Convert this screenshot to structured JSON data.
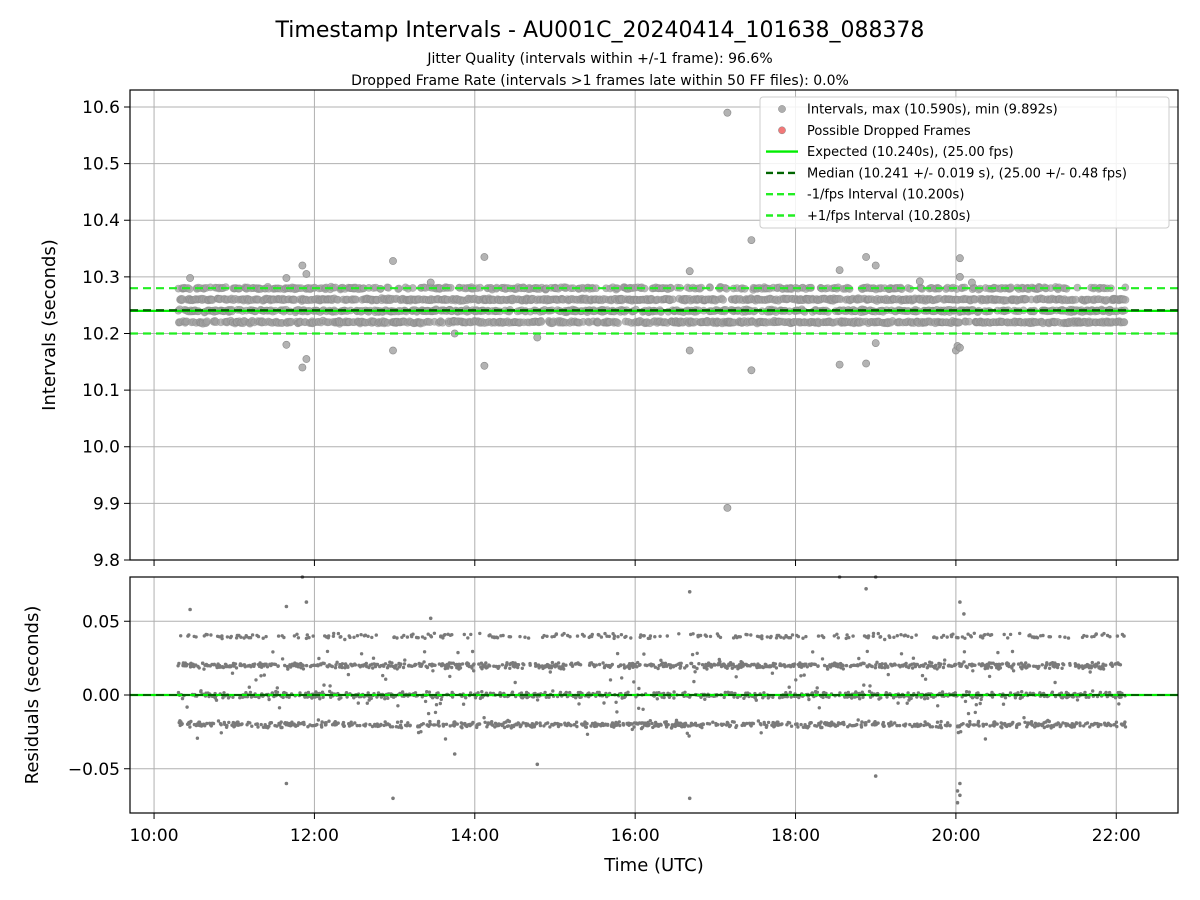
{
  "chart_data": [
    {
      "type": "scatter",
      "panel": "intervals",
      "title": "Timestamp Intervals - AU001C_20240414_101638_088378",
      "subtitle_1": "Jitter Quality (intervals within +/-1 frame): 96.6%",
      "subtitle_2": "Dropped Frame Rate (intervals >1 frames late within 50 FF files): 0.0%",
      "ylabel": "Intervals (seconds)",
      "xlim_hours": [
        9.7,
        22.77
      ],
      "ylim": [
        9.8,
        10.63
      ],
      "yticks": [
        9.8,
        9.9,
        10.0,
        10.1,
        10.2,
        10.3,
        10.4,
        10.5,
        10.6
      ],
      "ytick_labels": [
        "9.8",
        "9.9",
        "10.0",
        "10.1",
        "10.2",
        "10.3",
        "10.4",
        "10.5",
        "10.6"
      ],
      "grid": true,
      "legend_position": "top-right",
      "legend": [
        {
          "label": "Intervals, max (10.590s), min (9.892s)",
          "kind": "dot",
          "color": "#a0a0a0"
        },
        {
          "label": "Possible Dropped Frames",
          "kind": "dot",
          "color": "#f06060"
        },
        {
          "label": "Expected (10.240s), (25.00 fps)",
          "kind": "solid",
          "color": "#00ee00"
        },
        {
          "label": "Median (10.241 +/- 0.019 s), (25.00 +/- 0.48 fps)",
          "kind": "dashed",
          "color": "#006400"
        },
        {
          "label": "-1/fps Interval (10.200s)",
          "kind": "dashed",
          "color": "#22ee22"
        },
        {
          "label": "+1/fps Interval (10.280s)",
          "kind": "dashed",
          "color": "#22ee22"
        }
      ],
      "lines": {
        "expected": 10.24,
        "median": 10.241,
        "minus_fps": 10.2,
        "plus_fps": 10.28
      },
      "bands": [
        10.22,
        10.24,
        10.26,
        10.28
      ],
      "band_weights": [
        0.28,
        0.25,
        0.3,
        0.17
      ],
      "data_range_hours": [
        10.3,
        22.12
      ],
      "outliers": [
        {
          "x": 17.15,
          "y": 10.59
        },
        {
          "x": 17.15,
          "y": 9.892
        },
        {
          "x": 17.45,
          "y": 10.365
        },
        {
          "x": 14.12,
          "y": 10.335
        },
        {
          "x": 18.88,
          "y": 10.335
        },
        {
          "x": 20.05,
          "y": 10.333
        },
        {
          "x": 12.98,
          "y": 10.328
        },
        {
          "x": 11.85,
          "y": 10.32
        },
        {
          "x": 19.0,
          "y": 10.32
        },
        {
          "x": 18.55,
          "y": 10.312
        },
        {
          "x": 16.68,
          "y": 10.31
        },
        {
          "x": 11.9,
          "y": 10.305
        },
        {
          "x": 11.65,
          "y": 10.298
        },
        {
          "x": 10.45,
          "y": 10.298
        },
        {
          "x": 20.05,
          "y": 10.3
        },
        {
          "x": 13.45,
          "y": 10.29
        },
        {
          "x": 19.55,
          "y": 10.292
        },
        {
          "x": 20.2,
          "y": 10.29
        },
        {
          "x": 11.65,
          "y": 10.18
        },
        {
          "x": 11.9,
          "y": 10.155
        },
        {
          "x": 11.85,
          "y": 10.14
        },
        {
          "x": 12.98,
          "y": 10.17
        },
        {
          "x": 14.12,
          "y": 10.143
        },
        {
          "x": 14.78,
          "y": 10.193
        },
        {
          "x": 13.75,
          "y": 10.2
        },
        {
          "x": 16.68,
          "y": 10.17
        },
        {
          "x": 17.45,
          "y": 10.135
        },
        {
          "x": 18.55,
          "y": 10.145
        },
        {
          "x": 18.88,
          "y": 10.147
        },
        {
          "x": 19.0,
          "y": 10.183
        },
        {
          "x": 20.0,
          "y": 10.17
        },
        {
          "x": 20.02,
          "y": 10.178
        },
        {
          "x": 20.05,
          "y": 10.175
        }
      ]
    },
    {
      "type": "scatter",
      "panel": "residuals",
      "xlabel": "Time (UTC)",
      "ylabel": "Residuals (seconds)",
      "xlim_hours": [
        9.7,
        22.77
      ],
      "ylim": [
        -0.08,
        0.08
      ],
      "yticks": [
        -0.05,
        0.0,
        0.05
      ],
      "ytick_labels": [
        "−0.05",
        "0.00",
        "0.05"
      ],
      "xticks_hours": [
        10,
        12,
        14,
        16,
        18,
        20,
        22
      ],
      "xtick_labels": [
        "10:00",
        "12:00",
        "14:00",
        "16:00",
        "18:00",
        "20:00",
        "22:00"
      ],
      "grid": true,
      "zero_line_color": "#00ee00",
      "median_line_color": "#006400",
      "bands": [
        -0.02,
        0.0,
        0.02,
        0.04
      ],
      "band_weights": [
        0.28,
        0.28,
        0.32,
        0.12
      ],
      "outliers": [
        {
          "x": 11.85,
          "y": 0.08
        },
        {
          "x": 18.55,
          "y": 0.08
        },
        {
          "x": 19.0,
          "y": 0.08
        },
        {
          "x": 18.88,
          "y": 0.072
        },
        {
          "x": 16.68,
          "y": 0.07
        },
        {
          "x": 11.9,
          "y": 0.063
        },
        {
          "x": 20.05,
          "y": 0.063
        },
        {
          "x": 11.65,
          "y": 0.06
        },
        {
          "x": 10.45,
          "y": 0.058
        },
        {
          "x": 20.1,
          "y": 0.055
        },
        {
          "x": 13.45,
          "y": 0.052
        },
        {
          "x": 13.75,
          "y": -0.04
        },
        {
          "x": 14.78,
          "y": -0.047
        },
        {
          "x": 19.0,
          "y": -0.055
        },
        {
          "x": 11.65,
          "y": -0.06
        },
        {
          "x": 20.05,
          "y": -0.06
        },
        {
          "x": 20.02,
          "y": -0.065
        },
        {
          "x": 20.05,
          "y": -0.068
        },
        {
          "x": 12.98,
          "y": -0.07
        },
        {
          "x": 16.68,
          "y": -0.07
        },
        {
          "x": 20.02,
          "y": -0.073
        }
      ]
    }
  ],
  "colors": {
    "interval_dot": "#a0a0a0",
    "residual_dot": "#7a7a7a",
    "grid": "#b0b0b0",
    "expected": "#00ee00",
    "median": "#006400",
    "fps_interval": "#22ee22"
  }
}
